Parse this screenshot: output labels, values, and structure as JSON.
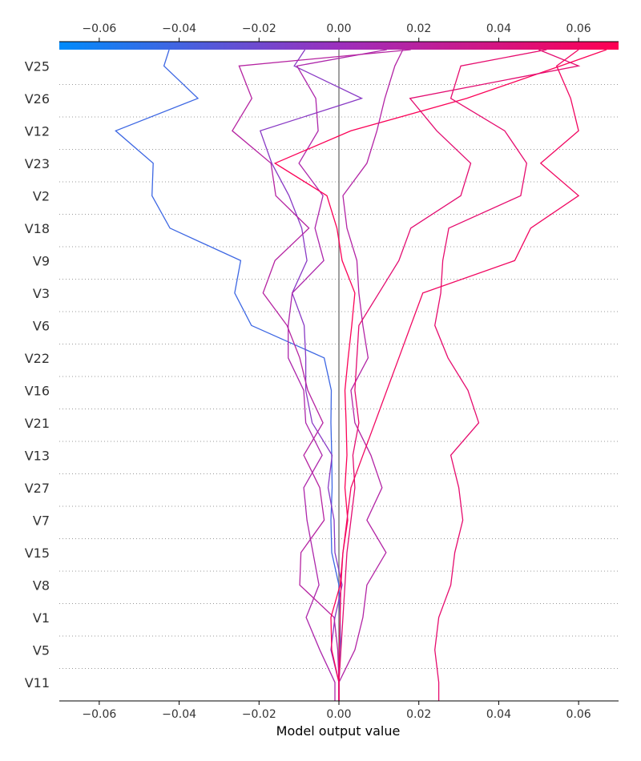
{
  "chart_data": {
    "type": "line",
    "xlabel": "Model output value",
    "xlim": [
      -0.07,
      0.07
    ],
    "base_value": 0.0,
    "ticks": [
      -0.06,
      -0.04,
      -0.02,
      0.0,
      0.02,
      0.04,
      0.06
    ],
    "tick_labels": [
      "−0.06",
      "−0.04",
      "−0.02",
      "0.00",
      "0.02",
      "0.04",
      "0.06"
    ],
    "colorbar": {
      "low_color": "#008bfb",
      "high_color": "#ff0052",
      "range": [
        -0.07,
        0.07
      ]
    },
    "features": [
      "V25",
      "V26",
      "V12",
      "V23",
      "V2",
      "V18",
      "V9",
      "V3",
      "V6",
      "V22",
      "V16",
      "V21",
      "V13",
      "V27",
      "V7",
      "V15",
      "V8",
      "V1",
      "V5",
      "V11"
    ],
    "series": [
      {
        "values": [
          -0.0425,
          -0.0438,
          -0.0353,
          -0.0559,
          -0.0465,
          -0.0468,
          -0.0423,
          -0.0246,
          -0.0261,
          -0.0219,
          -0.0037,
          -0.0019,
          -0.002,
          -0.0018,
          -0.0017,
          -0.002,
          -0.0018,
          0.0,
          0.0003,
          0.0004,
          0.0
        ]
      },
      {
        "values": [
          -0.0085,
          -0.0112,
          0.0057,
          -0.0197,
          -0.0168,
          -0.0125,
          -0.0093,
          -0.008,
          -0.0117,
          -0.0087,
          -0.0083,
          -0.0083,
          -0.0067,
          -0.0017,
          -0.0027,
          -0.0012,
          -0.001,
          0.0008,
          -0.001,
          -0.002,
          0.0
        ]
      },
      {
        "values": [
          0.012,
          -0.0105,
          -0.0058,
          -0.0052,
          -0.01,
          -0.004,
          -0.006,
          -0.0038,
          -0.0117,
          -0.0127,
          -0.0127,
          -0.0088,
          -0.0083,
          -0.0042,
          -0.0088,
          -0.008,
          -0.0065,
          -0.005,
          -0.0082,
          -0.0048,
          -0.001
        ]
      },
      {
        "values": [
          0.018,
          -0.025,
          -0.0218,
          -0.0267,
          -0.017,
          -0.0158,
          -0.0075,
          -0.016,
          -0.019,
          -0.013,
          -0.0098,
          -0.0078,
          -0.004,
          -0.0088,
          -0.0048,
          -0.0037,
          -0.0095,
          -0.0098,
          -0.0012,
          -0.0003,
          0.0
        ]
      },
      {
        "values": [
          0.067,
          0.0555,
          0.032,
          0.003,
          -0.016,
          -0.003,
          -0.0005,
          0.0008,
          0.004,
          0.0032,
          0.0023,
          0.0015,
          0.0018,
          0.002,
          0.0015,
          0.0022,
          0.001,
          0.0003,
          -0.002,
          -0.0018,
          0.0
        ]
      },
      {
        "values": [
          0.052,
          0.0305,
          0.028,
          0.0415,
          0.047,
          0.0455,
          0.0275,
          0.026,
          0.0255,
          0.024,
          0.0273,
          0.0323,
          0.035,
          0.028,
          0.03,
          0.031,
          0.029,
          0.028,
          0.025,
          0.024,
          0.025
        ]
      },
      {
        "values": [
          0.016,
          0.014,
          0.0115,
          0.0095,
          0.007,
          0.001,
          0.002,
          0.0045,
          0.005,
          0.006,
          0.0073,
          0.003,
          0.004,
          0.008,
          0.0108,
          0.007,
          0.0118,
          0.007,
          0.006,
          0.004,
          0.0
        ]
      },
      {
        "values": [
          0.05,
          0.06,
          0.0178,
          0.0245,
          0.033,
          0.0305,
          0.018,
          0.015,
          0.01,
          0.005,
          0.0045,
          0.004,
          0.005,
          0.0035,
          0.004,
          0.003,
          0.002,
          0.0015,
          0.001,
          0.0005,
          0.0
        ]
      },
      {
        "values": [
          0.06,
          0.0545,
          0.058,
          0.06,
          0.0505,
          0.06,
          0.048,
          0.044,
          0.021,
          0.018,
          0.015,
          0.012,
          0.009,
          0.006,
          0.003,
          0.002,
          0.001,
          0.0005,
          0.0003,
          0.0001,
          0.0
        ]
      }
    ]
  }
}
